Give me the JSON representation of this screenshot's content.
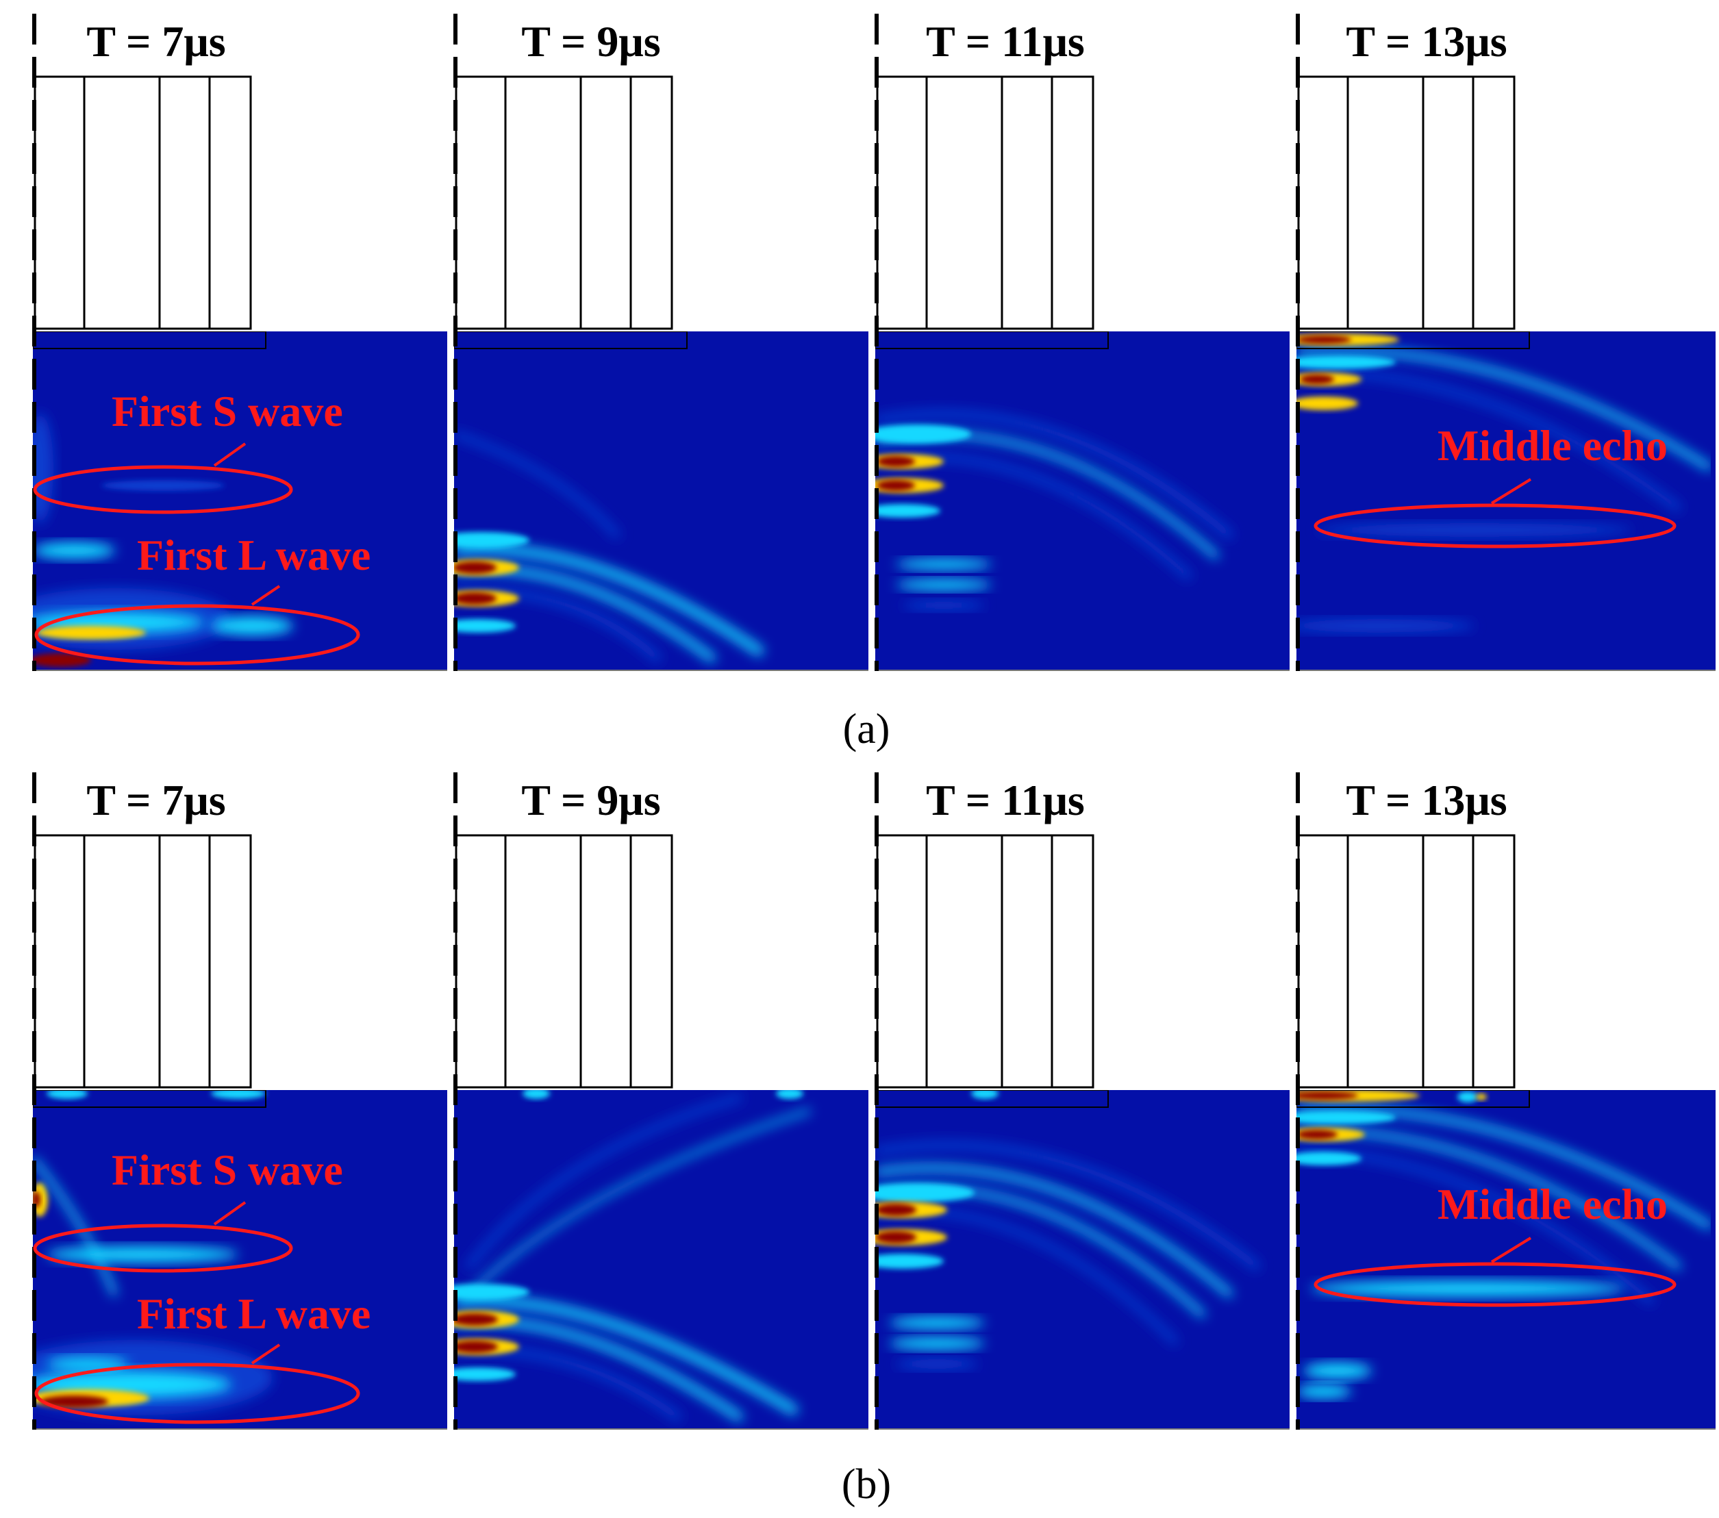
{
  "colors": {
    "field_background": "#0410a8",
    "field_glow": "#0a3ccf",
    "cyan": "#19d8ff",
    "yellow": "#ffd400",
    "dark_red": "#8b0000",
    "annotation": "#ff1a1a",
    "transducer_outline": "#000000"
  },
  "colormap": "jet",
  "rows": [
    {
      "caption": "(a)",
      "panels": [
        {
          "time_label": "T = 7μs",
          "annotations": [
            "First S wave",
            "First L wave"
          ]
        },
        {
          "time_label": "T = 9μs",
          "annotations": []
        },
        {
          "time_label": "T = 11μs",
          "annotations": []
        },
        {
          "time_label": "T = 13μs",
          "annotations": [
            "Middle echo"
          ]
        }
      ]
    },
    {
      "caption": "(b)",
      "panels": [
        {
          "time_label": "T = 7μs",
          "annotations": [
            "First S wave",
            "First L wave"
          ]
        },
        {
          "time_label": "T = 9μs",
          "annotations": []
        },
        {
          "time_label": "T = 11μs",
          "annotations": []
        },
        {
          "time_label": "T = 13μs",
          "annotations": [
            "Middle echo"
          ]
        }
      ]
    }
  ]
}
